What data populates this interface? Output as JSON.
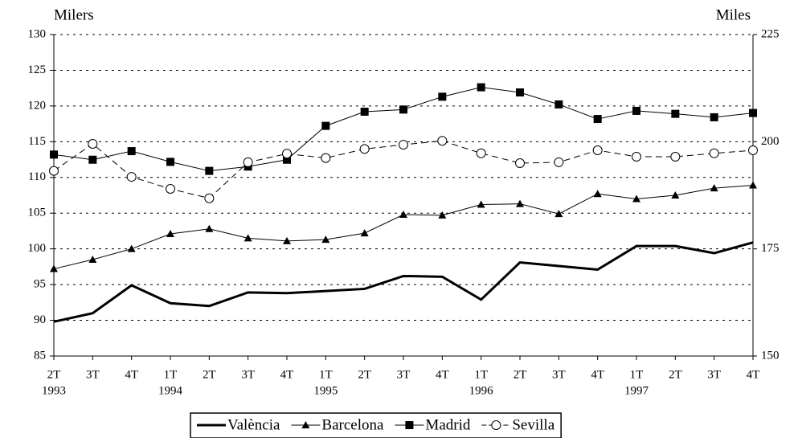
{
  "chart_data": {
    "type": "line",
    "y_label": "Milers",
    "y2_label": "Miles",
    "categories": [
      "2T",
      "3T",
      "4T",
      "1T",
      "2T",
      "3T",
      "4T",
      "1T",
      "2T",
      "3T",
      "4T",
      "1T",
      "2T",
      "3T",
      "4T",
      "1T",
      "2T",
      "3T",
      "4T"
    ],
    "year_labels": [
      "1993",
      null,
      null,
      "1994",
      null,
      null,
      null,
      "1995",
      null,
      null,
      null,
      "1996",
      null,
      null,
      null,
      "1997",
      null,
      null,
      null
    ],
    "ylim": [
      85,
      130
    ],
    "yticks": [
      85,
      90,
      95,
      100,
      105,
      110,
      115,
      120,
      125,
      130
    ],
    "y2lim": [
      150,
      225
    ],
    "y2ticks": [
      150,
      175,
      200,
      225
    ],
    "grid": true,
    "legend": "bottom",
    "series": [
      {
        "name": "València",
        "color": "#000000",
        "marker": "none",
        "line_width": 3,
        "dash": false,
        "values": [
          89.8,
          91.0,
          94.9,
          92.4,
          92.0,
          93.9,
          93.8,
          94.1,
          94.4,
          96.2,
          96.1,
          92.9,
          98.1,
          97.6,
          97.1,
          100.4,
          100.4,
          99.4,
          100.9
        ]
      },
      {
        "name": "Barcelona",
        "color": "#000000",
        "marker": "triangle",
        "line_width": 1,
        "dash": false,
        "values": [
          97.2,
          98.5,
          100.0,
          102.1,
          102.8,
          101.5,
          101.1,
          101.3,
          102.2,
          104.8,
          104.7,
          106.2,
          106.3,
          104.9,
          107.7,
          107.0,
          107.5,
          108.5,
          108.9
        ]
      },
      {
        "name": "Madrid",
        "color": "#000000",
        "marker": "square",
        "line_width": 1,
        "dash": false,
        "axis": "y2",
        "values": [
          197.0,
          195.8,
          197.8,
          195.3,
          193.2,
          194.2,
          195.8,
          203.7,
          207.0,
          207.5,
          210.5,
          212.7,
          211.5,
          208.7,
          205.3,
          207.2,
          206.5,
          205.7,
          206.7
        ]
      },
      {
        "name": "Sevilla",
        "color": "#000000",
        "marker": "circle",
        "line_width": 1,
        "dash": true,
        "axis": "y2",
        "values": [
          193.2,
          199.5,
          191.8,
          189.0,
          186.8,
          195.2,
          197.2,
          196.2,
          198.3,
          199.3,
          200.2,
          197.3,
          195.0,
          195.2,
          198.0,
          196.5,
          196.5,
          197.3,
          198.0
        ]
      }
    ]
  }
}
